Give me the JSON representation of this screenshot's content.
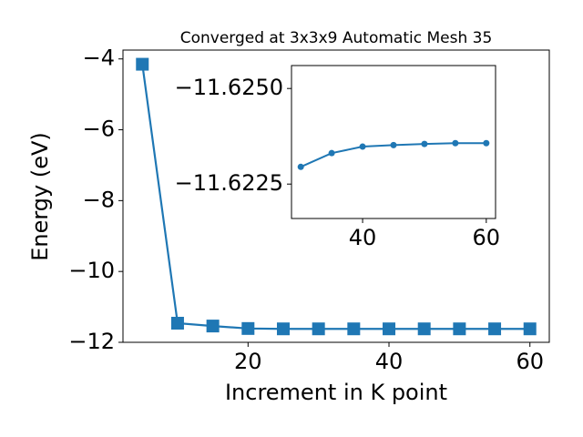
{
  "chart_data": [
    {
      "type": "line",
      "title": "Converged at 3x3x9 Automatic Mesh 35",
      "x_label": "Increment in K point",
      "y_label": "Energy (eV)",
      "x": [
        5,
        10,
        15,
        20,
        25,
        30,
        35,
        40,
        45,
        50,
        55,
        60
      ],
      "series": [
        {
          "name": "Energy",
          "color": "#1f77b4",
          "marker": "square",
          "values": [
            -4.15,
            -11.46,
            -11.54,
            -11.61,
            -11.62,
            -11.62,
            -11.62,
            -11.62,
            -11.62,
            -11.62,
            -11.62,
            -11.62
          ]
        }
      ],
      "xlim": [
        2.25,
        62.75
      ],
      "ylim": [
        -12.0,
        -3.75
      ],
      "xticks": [
        20,
        40,
        60
      ],
      "yticks": [
        {
          "value": -4,
          "label": "−4"
        },
        {
          "value": -6,
          "label": "−6"
        },
        {
          "value": -8,
          "label": "−8"
        },
        {
          "value": -10,
          "label": "−10"
        },
        {
          "value": -12,
          "label": "−12"
        }
      ]
    },
    {
      "type": "line",
      "x": [
        30,
        35,
        40,
        45,
        50,
        55,
        60
      ],
      "series": [
        {
          "name": "Energy",
          "color": "#1f77b4",
          "marker": "circle",
          "values": [
            -11.62295,
            -11.62331,
            -11.62348,
            -11.62352,
            -11.62355,
            -11.62357,
            -11.62357
          ]
        }
      ],
      "xlim": [
        28.5,
        61.5
      ],
      "ylim": [
        -11.6216,
        -11.6256
      ],
      "xticks": [
        40,
        60
      ],
      "yticks": [
        {
          "value": -11.625,
          "label": "−11.6250"
        },
        {
          "value": -11.6225,
          "label": "−11.6225"
        }
      ]
    }
  ]
}
